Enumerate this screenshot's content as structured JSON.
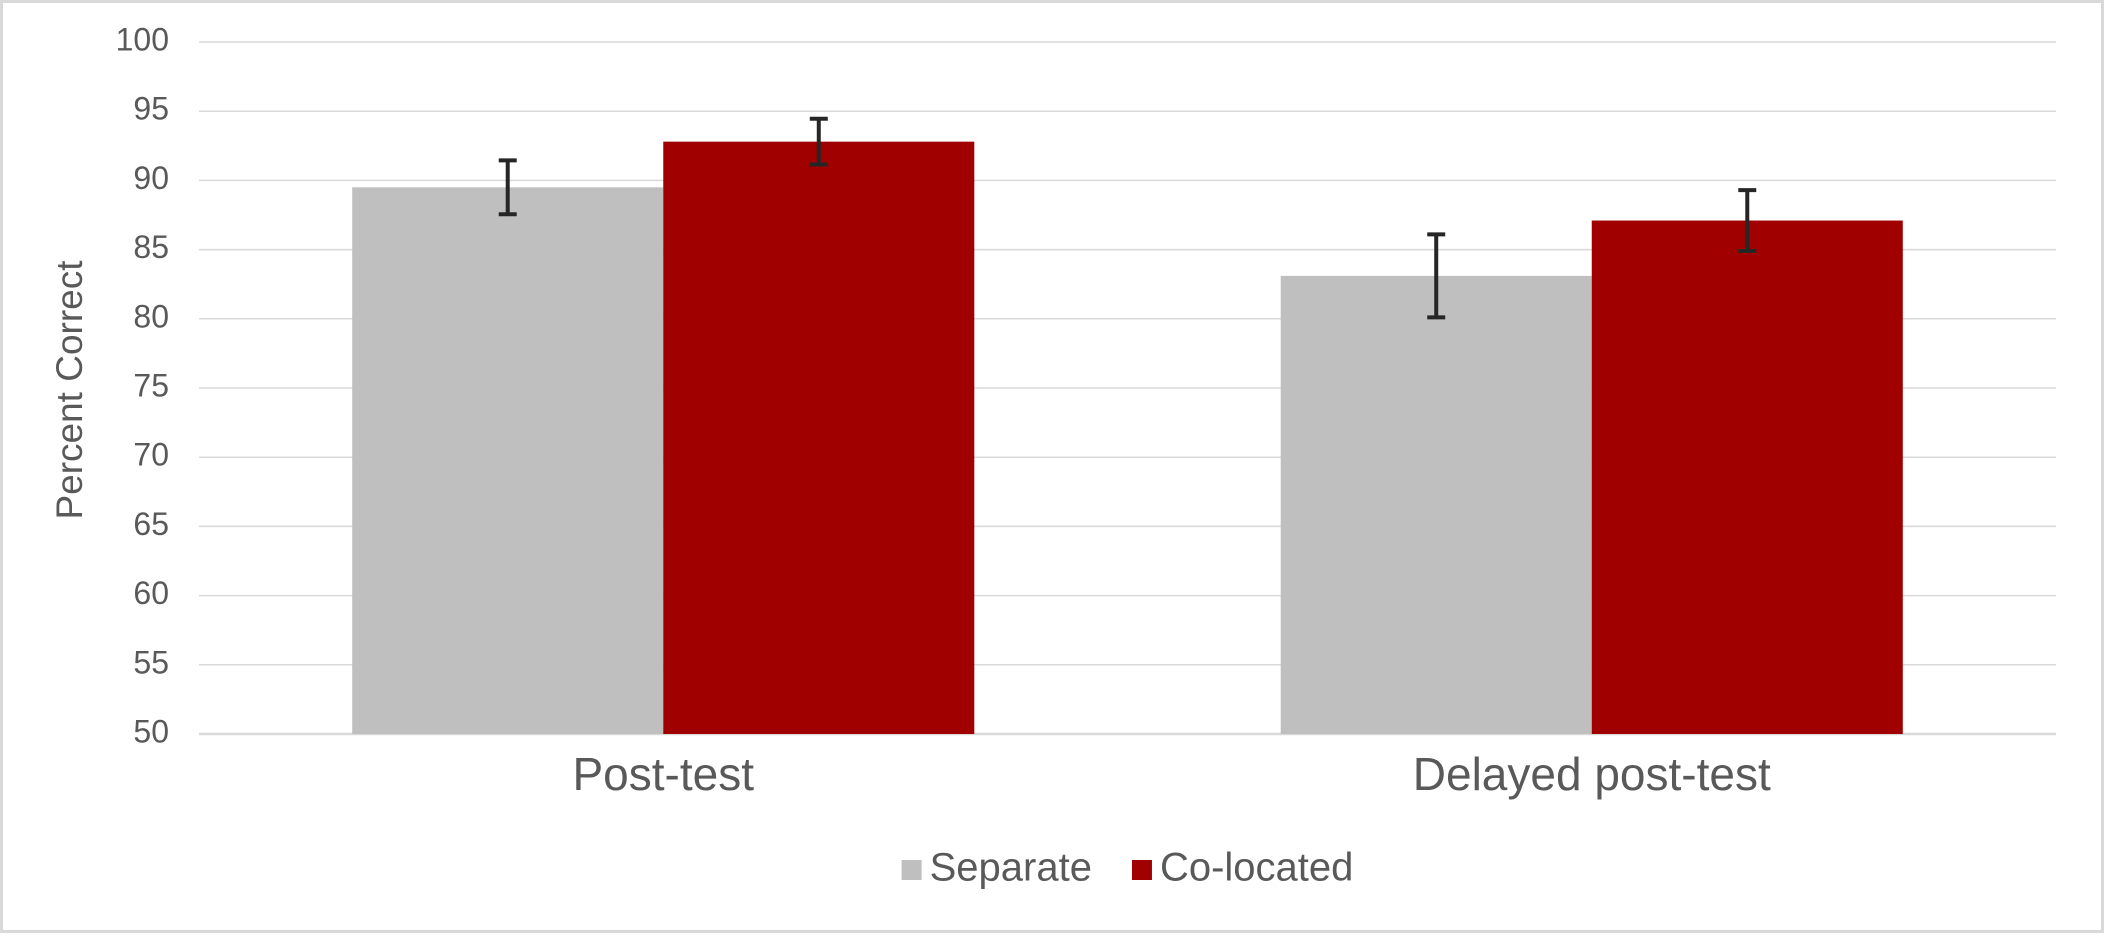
{
  "chart_data": {
    "type": "bar",
    "y_label": "Percent Correct",
    "categories": [
      "Post-test",
      "Delayed post-test"
    ],
    "series": [
      {
        "name": "Separate",
        "color": "#bfbfbf",
        "values": [
          89.5,
          83.1
        ],
        "errors": [
          1.95,
          3.0
        ]
      },
      {
        "name": "Co-located",
        "color": "#a00000",
        "values": [
          92.8,
          87.1
        ],
        "errors": [
          1.65,
          2.2
        ]
      }
    ],
    "ylim": [
      50,
      100
    ],
    "yticks": [
      50,
      55,
      60,
      65,
      70,
      75,
      80,
      85,
      90,
      95,
      100
    ],
    "grid": true,
    "legend": "bottom"
  }
}
